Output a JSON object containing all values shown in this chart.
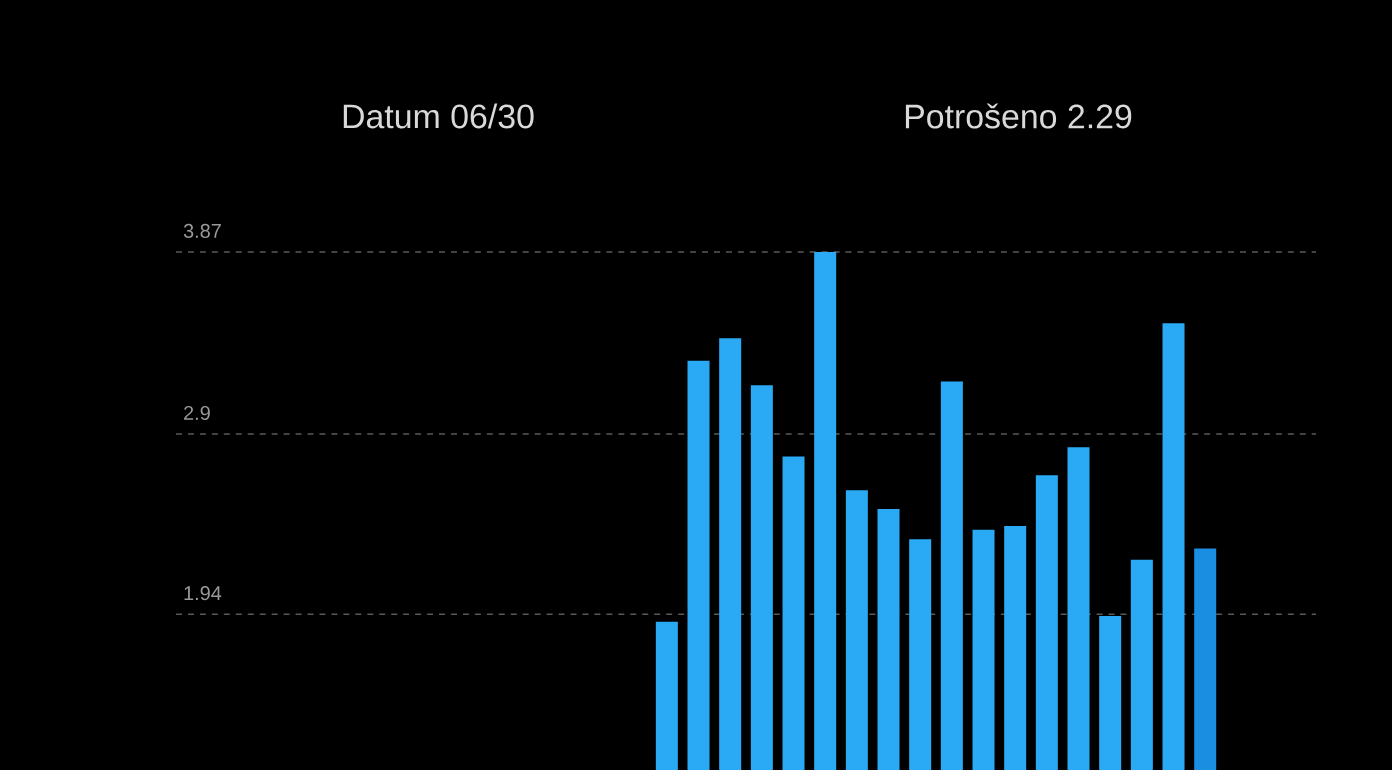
{
  "chart_data": {
    "type": "bar",
    "title": "Datum 06/30",
    "subtitle": "Potrošeno 2.29",
    "categories": [
      null,
      null,
      null,
      null,
      null,
      null,
      null,
      null,
      null,
      null,
      null,
      null,
      null,
      null,
      null,
      null,
      null,
      null,
      null,
      null,
      null,
      null,
      null,
      null,
      null,
      null,
      null,
      null,
      null,
      null,
      null,
      null,
      null,
      null,
      null,
      null
    ],
    "values": [
      null,
      null,
      null,
      null,
      null,
      null,
      null,
      null,
      null,
      null,
      null,
      null,
      null,
      null,
      null,
      1.9,
      3.29,
      3.41,
      3.16,
      2.78,
      3.87,
      2.6,
      2.5,
      2.34,
      3.18,
      2.39,
      2.41,
      2.68,
      2.83,
      1.93,
      2.23,
      3.49,
      2.29,
      null,
      null,
      null
    ],
    "colors": [
      "#2aaaf5",
      "#2aaaf5",
      "#2aaaf5",
      "#2aaaf5",
      "#2aaaf5",
      "#2aaaf5",
      "#2aaaf5",
      "#2aaaf5",
      "#2aaaf5",
      "#2aaaf5",
      "#2aaaf5",
      "#2aaaf5",
      "#2aaaf5",
      "#2aaaf5",
      "#2aaaf5",
      "#2aaaf5",
      "#2aaaf5",
      "#2aaaf5",
      "#2aaaf5",
      "#2aaaf5",
      "#2aaaf5",
      "#2aaaf5",
      "#2aaaf5",
      "#2aaaf5",
      "#2aaaf5",
      "#2aaaf5",
      "#2aaaf5",
      "#2aaaf5",
      "#2aaaf5",
      "#2aaaf5",
      "#2aaaf5",
      "#2aaaf5",
      "#1a8ee0",
      "#2aaaf5",
      "#2aaaf5",
      "#2aaaf5"
    ],
    "ylim": [
      1.11,
      3.87
    ],
    "yticks": [
      1.94,
      2.9,
      3.87
    ],
    "grid": "y"
  }
}
